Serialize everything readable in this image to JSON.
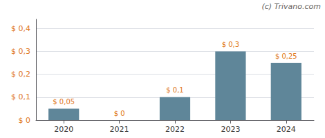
{
  "chart_data": {
    "type": "bar",
    "categories": [
      "2020",
      "2021",
      "2022",
      "2023",
      "2024"
    ],
    "values": [
      0.05,
      0.0,
      0.1,
      0.3,
      0.25
    ],
    "value_labels": [
      "$ 0,05",
      "$ 0",
      "$ 0,1",
      "$ 0,3",
      "$ 0,25"
    ],
    "data_labels": true,
    "color": "#5f8699",
    "ylim": [
      0,
      0.44
    ],
    "yticks": [
      {
        "value": 0.0,
        "label": "$ 0"
      },
      {
        "value": 0.1,
        "label": "$ 0,1"
      },
      {
        "value": 0.2,
        "label": "$ 0,2"
      },
      {
        "value": 0.3,
        "label": "$ 0,3"
      },
      {
        "value": 0.4,
        "label": "$ 0,4"
      }
    ],
    "grid": true,
    "annotations": [
      "(c) Trivano.com"
    ]
  }
}
